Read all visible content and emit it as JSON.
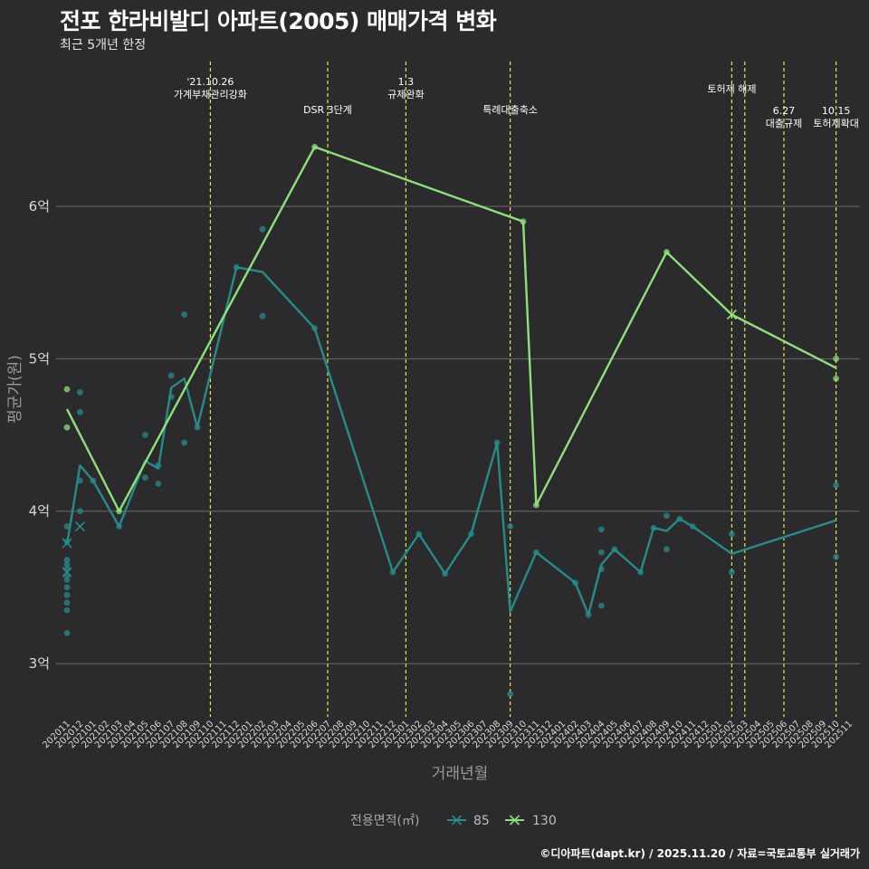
{
  "header": {
    "title": "전포 한라비발디 아파트(2005) 매매가격 변화",
    "subtitle": "최근 5개년 한정"
  },
  "caption": "©디아파트(dapt.kr) / 2025.11.20 / 자료=국토교통부 실거래가",
  "colors": {
    "background": "#2b2b2d",
    "grid": "#6b6b6b",
    "series_85": "#2a8a8a",
    "series_130": "#8fe07a",
    "vline": "#e8e84a"
  },
  "chart_data": {
    "type": "line",
    "xlabel": "거래년월",
    "ylabel": "평균가(원)",
    "ylim": [
      2.65,
      6.95
    ],
    "yticks": [
      3,
      4,
      5,
      6
    ],
    "ytick_labels": [
      "3억",
      "4억",
      "5억",
      "6억"
    ],
    "x_categories": [
      "202011",
      "202012",
      "202101",
      "202102",
      "202103",
      "202104",
      "202105",
      "202106",
      "202107",
      "202108",
      "202109",
      "202110",
      "202111",
      "202112",
      "202201",
      "202202",
      "202203",
      "202204",
      "202205",
      "202206",
      "202207",
      "202208",
      "202209",
      "202210",
      "202211",
      "202212",
      "202301",
      "202302",
      "202303",
      "202304",
      "202305",
      "202306",
      "202307",
      "202308",
      "202309",
      "202310",
      "202311",
      "202312",
      "202401",
      "202402",
      "202403",
      "202404",
      "202405",
      "202406",
      "202407",
      "202408",
      "202409",
      "202410",
      "202411",
      "202412",
      "202501",
      "202502",
      "202503",
      "202504",
      "202505",
      "202506",
      "202507",
      "202508",
      "202509",
      "202510",
      "202511"
    ],
    "legend": {
      "title": "전용면적(㎡)",
      "entries": [
        "85",
        "130"
      ]
    },
    "series": [
      {
        "name": "85",
        "line": [
          [
            "202011",
            3.78
          ],
          [
            "202012",
            4.3
          ],
          [
            "202101",
            4.2
          ],
          [
            "202103",
            3.9
          ],
          [
            "202105",
            4.33
          ],
          [
            "202106",
            4.28
          ],
          [
            "202107",
            4.81
          ],
          [
            "202108",
            4.87
          ],
          [
            "202109",
            4.55
          ],
          [
            "202112",
            5.6
          ],
          [
            "202202",
            5.57
          ],
          [
            "202206",
            5.2
          ],
          [
            "202212",
            3.6
          ],
          [
            "202302",
            3.85
          ],
          [
            "202304",
            3.59
          ],
          [
            "202306",
            3.85
          ],
          [
            "202308",
            4.45
          ],
          [
            "202309",
            3.34
          ],
          [
            "202311",
            3.73
          ],
          [
            "202402",
            3.53
          ],
          [
            "202403",
            3.32
          ],
          [
            "202404",
            3.65
          ],
          [
            "202405",
            3.75
          ],
          [
            "202407",
            3.6
          ],
          [
            "202408",
            3.89
          ],
          [
            "202409",
            3.87
          ],
          [
            "202410",
            3.95
          ],
          [
            "202411",
            3.9
          ],
          [
            "202502",
            3.72
          ],
          [
            "202510",
            3.94
          ]
        ],
        "points": [
          [
            "202011",
            3.2
          ],
          [
            "202011",
            3.35
          ],
          [
            "202011",
            3.4
          ],
          [
            "202011",
            3.45
          ],
          [
            "202011",
            3.5
          ],
          [
            "202011",
            3.55
          ],
          [
            "202011",
            3.58
          ],
          [
            "202011",
            3.62
          ],
          [
            "202011",
            3.65
          ],
          [
            "202011",
            3.68
          ],
          [
            "202011",
            3.8
          ],
          [
            "202011",
            3.9
          ],
          [
            "202012",
            4.0
          ],
          [
            "202012",
            4.2
          ],
          [
            "202012",
            4.65
          ],
          [
            "202012",
            4.78
          ],
          [
            "202101",
            4.2
          ],
          [
            "202103",
            3.9
          ],
          [
            "202105",
            4.22
          ],
          [
            "202105",
            4.5
          ],
          [
            "202106",
            4.18
          ],
          [
            "202106",
            4.3
          ],
          [
            "202107",
            4.75
          ],
          [
            "202107",
            4.89
          ],
          [
            "202108",
            4.45
          ],
          [
            "202108",
            5.29
          ],
          [
            "202109",
            4.55
          ],
          [
            "202112",
            5.6
          ],
          [
            "202202",
            5.28
          ],
          [
            "202202",
            5.85
          ],
          [
            "202206",
            5.2
          ],
          [
            "202212",
            3.6
          ],
          [
            "202302",
            3.85
          ],
          [
            "202304",
            3.59
          ],
          [
            "202306",
            3.85
          ],
          [
            "202308",
            4.45
          ],
          [
            "202309",
            2.8
          ],
          [
            "202309",
            3.9
          ],
          [
            "202311",
            3.73
          ],
          [
            "202402",
            3.53
          ],
          [
            "202403",
            3.32
          ],
          [
            "202404",
            3.38
          ],
          [
            "202404",
            3.62
          ],
          [
            "202404",
            3.73
          ],
          [
            "202404",
            3.88
          ],
          [
            "202405",
            3.75
          ],
          [
            "202407",
            3.6
          ],
          [
            "202408",
            3.89
          ],
          [
            "202409",
            3.75
          ],
          [
            "202409",
            3.97
          ],
          [
            "202410",
            3.95
          ],
          [
            "202411",
            3.9
          ],
          [
            "202502",
            3.6
          ],
          [
            "202502",
            3.85
          ],
          [
            "202510",
            3.7
          ],
          [
            "202510",
            4.17
          ]
        ],
        "cross_markers": [
          [
            "202011",
            3.6
          ],
          [
            "202011",
            3.79
          ],
          [
            "202012",
            3.9
          ]
        ]
      },
      {
        "name": "130",
        "line": [
          [
            "202011",
            4.67
          ],
          [
            "202103",
            4.0
          ],
          [
            "202206",
            6.39
          ],
          [
            "202310",
            5.9
          ],
          [
            "202311",
            4.04
          ],
          [
            "202409",
            5.7
          ],
          [
            "202502",
            5.29
          ],
          [
            "202510",
            4.94
          ]
        ],
        "points": [
          [
            "202011",
            4.55
          ],
          [
            "202011",
            4.8
          ],
          [
            "202103",
            4.0
          ],
          [
            "202206",
            6.39
          ],
          [
            "202310",
            5.9
          ],
          [
            "202311",
            4.04
          ],
          [
            "202409",
            5.7
          ],
          [
            "202510",
            4.87
          ],
          [
            "202510",
            5.0
          ]
        ],
        "cross_markers": [
          [
            "202502",
            5.29
          ]
        ]
      }
    ],
    "events": [
      {
        "x": 11.0,
        "lines": [
          "'21.10.26",
          "가계부채관리강화"
        ],
        "row": 0
      },
      {
        "x": 20.0,
        "lines": [
          "DSR 3단계"
        ],
        "row": 2
      },
      {
        "x": 26.0,
        "lines": [
          "1.3",
          "규제완화"
        ],
        "row": 0
      },
      {
        "x": 34.0,
        "lines": [
          "특례대출축소"
        ],
        "row": 2
      },
      {
        "x": 51.0,
        "lines": [
          "토허제 해제"
        ],
        "row": 1
      },
      {
        "x": 52.0,
        "lines": [],
        "row": 1
      },
      {
        "x": 55.0,
        "lines": [
          "6.27",
          "대출규제"
        ],
        "row": 3
      },
      {
        "x": 59.0,
        "lines": [
          "10.15",
          "토허제확대"
        ],
        "row": 3
      }
    ]
  }
}
